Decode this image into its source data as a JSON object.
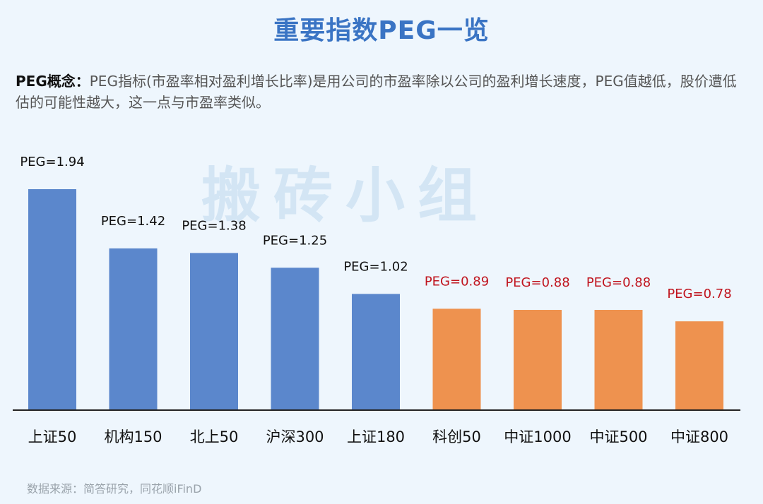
{
  "title": "重要指数PEG一览",
  "concept": {
    "label": "PEG概念：",
    "text": "PEG指标(市盈率相对盈利增长比率)是用公司的市盈率除以公司的盈利增长速度，PEG值越低，股价遭低估的可能性越大，这一点与市盈率类似。"
  },
  "watermark": "搬砖小组",
  "source": "数据来源：简答研究，同花顺iFinD",
  "colors": {
    "bar_blue": "#5b87cc",
    "bar_orange": "#ee924f",
    "label_dark": "#111111",
    "label_red": "#c0141e"
  },
  "chart_data": {
    "type": "bar",
    "categories": [
      "上证50",
      "机构150",
      "北上50",
      "沪深300",
      "上证180",
      "科创50",
      "中证1000",
      "中证500",
      "中证800"
    ],
    "values": [
      1.94,
      1.42,
      1.38,
      1.25,
      1.02,
      0.89,
      0.88,
      0.88,
      0.78
    ],
    "data_labels": [
      "PEG=1.94",
      "PEG=1.42",
      "PEG=1.38",
      "PEG=1.25",
      "PEG=1.02",
      "PEG=0.89",
      "PEG=0.88",
      "PEG=0.88",
      "PEG=0.78"
    ],
    "bar_colors": [
      "blue",
      "blue",
      "blue",
      "blue",
      "blue",
      "orange",
      "orange",
      "orange",
      "orange"
    ],
    "label_colors": [
      "dark",
      "dark",
      "dark",
      "dark",
      "dark",
      "red",
      "red",
      "red",
      "red"
    ],
    "ylim": [
      0,
      1.94
    ],
    "grid": false,
    "xlabel": "",
    "ylabel": ""
  }
}
